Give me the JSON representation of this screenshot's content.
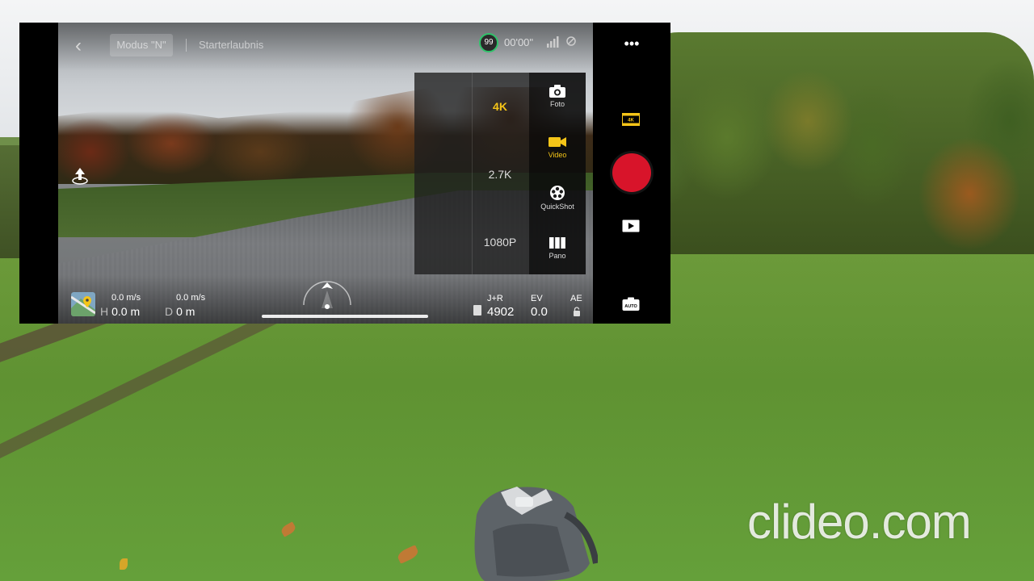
{
  "header": {
    "mode_label": "Modus \"N\"",
    "status_text": "Starterlaubnis",
    "battery_percent": "99",
    "flight_time": "00'00\""
  },
  "resolution_options": [
    {
      "label": "4K",
      "active": true
    },
    {
      "label": "2.7K",
      "active": false
    },
    {
      "label": "1080P",
      "active": false
    }
  ],
  "capture_modes": [
    {
      "label": "Foto",
      "icon": "camera-icon",
      "active": false
    },
    {
      "label": "Video",
      "icon": "video-icon",
      "active": true
    },
    {
      "label": "QuickShot",
      "icon": "quickshot-icon",
      "active": false
    },
    {
      "label": "Pano",
      "icon": "pano-icon",
      "active": false
    }
  ],
  "telemetry": {
    "horizontal_speed": "0.0 m/s",
    "vertical_speed": "0.0 m/s",
    "height_label": "H",
    "height_value": "0.0 m",
    "distance_label": "D",
    "distance_value": "0 m"
  },
  "capture_info": {
    "format_label": "J+R",
    "remaining_shots": "4902",
    "ev_label": "EV",
    "ev_value": "0.0",
    "ae_label": "AE"
  },
  "right_bar": {
    "resolution_badge": "4K",
    "auto_badge": "AUTO"
  },
  "colors": {
    "accent": "#f5c518",
    "record": "#d8142a",
    "battery_ring": "#2fc36a"
  },
  "watermark": "clideo.com"
}
